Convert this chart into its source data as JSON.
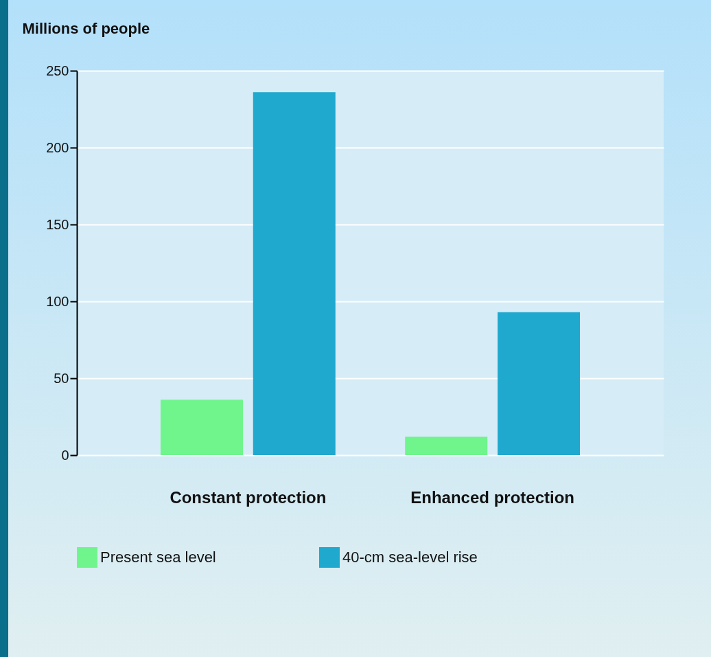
{
  "chart_data": {
    "type": "bar",
    "ylabel": "Millions of people",
    "categories": [
      "Constant protection",
      "Enhanced protection"
    ],
    "series": [
      {
        "name": "Present sea level",
        "color": "#6ff58c",
        "values": [
          36,
          12
        ]
      },
      {
        "name": "40-cm sea-level rise",
        "color": "#20a9cf",
        "values": [
          236,
          93
        ]
      }
    ],
    "ylim": [
      0,
      250
    ],
    "yticks": [
      0,
      50,
      100,
      150,
      200,
      250
    ],
    "grid": "y",
    "legend": "bottom"
  }
}
